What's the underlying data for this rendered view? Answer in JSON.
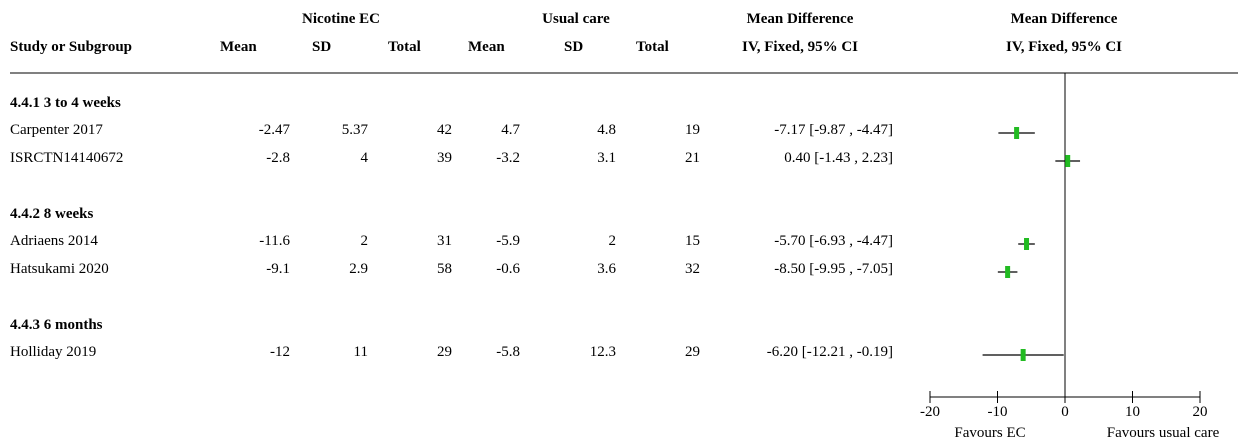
{
  "header": {
    "group1": "Nicotine EC",
    "group2": "Usual care",
    "md_title": "Mean Difference",
    "md_subtitle": "IV, Fixed, 95% CI",
    "plot_title": "Mean Difference",
    "plot_subtitle": "IV, Fixed, 95% CI",
    "study_col": "Study or Subgroup",
    "mean": "Mean",
    "sd": "SD",
    "total": "Total"
  },
  "subgroups": [
    {
      "label": "4.4.1 3 to 4 weeks",
      "studies": [
        {
          "name": "Carpenter 2017",
          "mean1": "-2.47",
          "sd1": "5.37",
          "n1": "42",
          "mean2": "4.7",
          "sd2": "4.8",
          "n2": "19",
          "ci": "-7.17 [-9.87 , -4.47]"
        },
        {
          "name": "ISRCTN14140672",
          "mean1": "-2.8",
          "sd1": "4",
          "n1": "39",
          "mean2": "-3.2",
          "sd2": "3.1",
          "n2": "21",
          "ci": "0.40 [-1.43 , 2.23]"
        }
      ]
    },
    {
      "label": "4.4.2 8 weeks",
      "studies": [
        {
          "name": "Adriaens 2014",
          "mean1": "-11.6",
          "sd1": "2",
          "n1": "31",
          "mean2": "-5.9",
          "sd2": "2",
          "n2": "15",
          "ci": "-5.70 [-6.93 , -4.47]"
        },
        {
          "name": "Hatsukami 2020",
          "mean1": "-9.1",
          "sd1": "2.9",
          "n1": "58",
          "mean2": "-0.6",
          "sd2": "3.6",
          "n2": "32",
          "ci": "-8.50 [-9.95 , -7.05]"
        }
      ]
    },
    {
      "label": "4.4.3 6 months",
      "studies": [
        {
          "name": "Holliday 2019",
          "mean1": "-12",
          "sd1": "11",
          "n1": "29",
          "mean2": "-5.8",
          "sd2": "12.3",
          "n2": "29",
          "ci": "-6.20 [-12.21 , -0.19]"
        }
      ]
    }
  ],
  "chart_data": {
    "type": "forest",
    "xlim": [
      -20,
      20
    ],
    "ticks": [
      -20,
      -10,
      0,
      10,
      20
    ],
    "tick_labels": [
      "-20",
      "-10",
      "0",
      "10",
      "20"
    ],
    "favours_left": "Favours EC",
    "favours_right": "Favours usual care",
    "marker_color": "#22bb22",
    "points": [
      {
        "study": "Carpenter 2017",
        "est": -7.17,
        "lo": -9.87,
        "hi": -4.47
      },
      {
        "study": "ISRCTN14140672",
        "est": 0.4,
        "lo": -1.43,
        "hi": 2.23
      },
      {
        "study": "Adriaens 2014",
        "est": -5.7,
        "lo": -6.93,
        "hi": -4.47
      },
      {
        "study": "Hatsukami 2020",
        "est": -8.5,
        "lo": -9.95,
        "hi": -7.05
      },
      {
        "study": "Holliday 2019",
        "est": -6.2,
        "lo": -12.21,
        "hi": -0.19
      }
    ]
  }
}
